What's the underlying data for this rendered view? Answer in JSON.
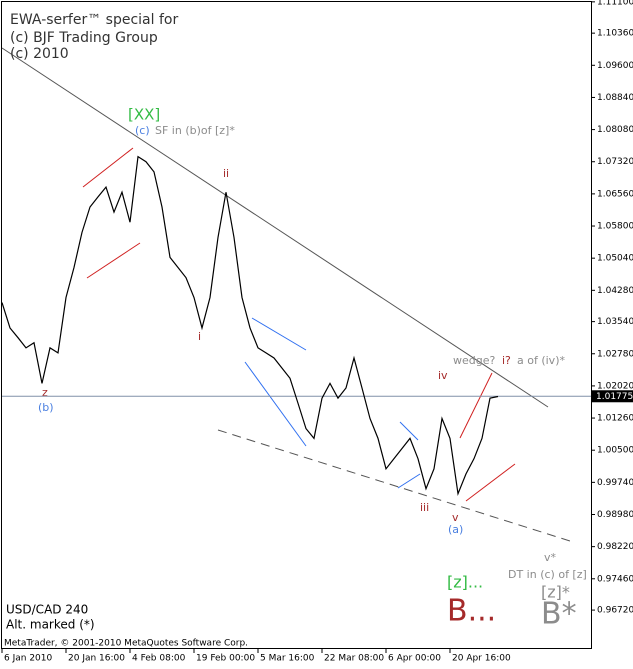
{
  "chart_data": {
    "type": "line",
    "color": "#000000",
    "categories": [
      "6 Jan 2010",
      null,
      null,
      null,
      null,
      null,
      null,
      null,
      "20 Jan 16:00",
      null,
      null,
      null,
      null,
      null,
      null,
      null,
      "4 Feb 08:00",
      null,
      null,
      null,
      null,
      null,
      null,
      null,
      "19 Feb 00:00",
      null,
      null,
      null,
      null,
      null,
      null,
      null,
      "5 Mar 16:00",
      null,
      null,
      null,
      null,
      null,
      null,
      null,
      "22 Mar 08:00",
      null,
      null,
      null,
      null,
      null,
      null,
      null,
      "6 Apr 00:00",
      null,
      null,
      null,
      null,
      null,
      null,
      null,
      "20 Apr 16:00",
      null,
      null,
      null,
      null,
      null,
      null
    ],
    "values": [
      1.0399,
      1.0339,
      1.0316,
      1.0292,
      1.0304,
      1.0208,
      1.0292,
      1.028,
      1.0411,
      1.0482,
      1.0565,
      1.0625,
      1.0649,
      1.0672,
      1.0613,
      1.066,
      1.0589,
      1.0744,
      1.0732,
      1.0708,
      1.0625,
      1.0506,
      1.0482,
      1.0458,
      1.0411,
      1.0339,
      1.0411,
      1.0553,
      1.066,
      1.0553,
      1.0411,
      1.0339,
      1.0292,
      1.028,
      1.0268,
      1.0244,
      1.022,
      1.0161,
      1.0101,
      1.0078,
      1.0173,
      1.0208,
      1.0173,
      1.0197,
      1.0268,
      1.0197,
      1.0125,
      1.0078,
      1.0006,
      1.003,
      1.0054,
      1.0078,
      1.003,
      0.9959,
      1.0006,
      1.0125,
      1.0078,
      0.9947,
      0.9994,
      1.003,
      1.0078,
      1.0173,
      1.0177
    ],
    "last_price": 1.01775,
    "ylim": [
      0.958,
      1.1112
    ],
    "yticks": [
      {
        "value": 1.111,
        "label": "1.11100"
      },
      {
        "value": 1.1036,
        "label": "1.10360"
      },
      {
        "value": 1.096,
        "label": "1.09600"
      },
      {
        "value": 1.0884,
        "label": "1.08840"
      },
      {
        "value": 1.0808,
        "label": "1.08080"
      },
      {
        "value": 1.0732,
        "label": "1.07320"
      },
      {
        "value": 1.0656,
        "label": "1.06560"
      },
      {
        "value": 1.058,
        "label": "1.05800"
      },
      {
        "value": 1.0504,
        "label": "1.05040"
      },
      {
        "value": 1.0428,
        "label": "1.04280"
      },
      {
        "value": 1.0354,
        "label": "1.03540"
      },
      {
        "value": 1.0278,
        "label": "1.02780"
      },
      {
        "value": 1.0202,
        "label": "1.02020"
      },
      {
        "value": 1.0126,
        "label": "1.01260"
      },
      {
        "value": 1.005,
        "label": "1.00500"
      },
      {
        "value": 0.9974,
        "label": "0.99740"
      },
      {
        "value": 0.9898,
        "label": "0.98980"
      },
      {
        "value": 0.9822,
        "label": "0.98220"
      },
      {
        "value": 0.9746,
        "label": "0.97460"
      },
      {
        "value": 0.9672,
        "label": "0.96720"
      }
    ],
    "annotations": [
      "EWA-serfer™ special for",
      "(c) BJF Trading Group",
      "(c) 2010",
      "[XX]",
      "(c)",
      "SF in (b)of [z]*",
      "ii",
      "i",
      "z",
      "(b)",
      "iii",
      "iv",
      "v",
      "(a)",
      "wedge?",
      "i?",
      "a of (iv)*",
      "v*",
      "DT in (c) of [z]",
      "[z]*",
      "B*",
      "[z]...",
      "B...",
      "USD/CAD 240",
      "Alt. marked (*)",
      "MetaTrader, © 2001-2010 MetaQuotes Software Corp."
    ]
  }
}
